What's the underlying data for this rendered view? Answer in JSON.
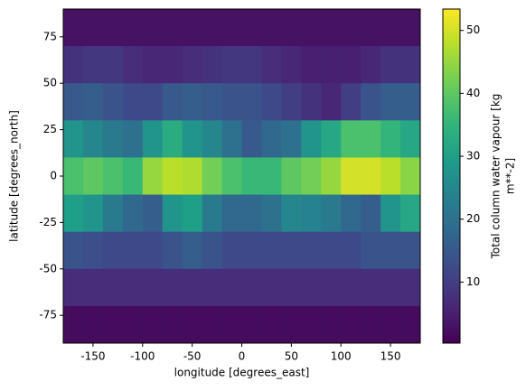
{
  "chart_data": {
    "type": "heatmap",
    "xlabel": "longitude [degrees_east]",
    "ylabel": "latitude [degrees_north]",
    "colorbar_label": [
      "Total column water vapour [kg",
      "m**-2]"
    ],
    "colormap": "viridis",
    "x_edges": [
      -180,
      -160,
      -140,
      -120,
      -100,
      -80,
      -60,
      -40,
      -20,
      0,
      20,
      40,
      60,
      80,
      100,
      120,
      140,
      160,
      180
    ],
    "y_edges": [
      90,
      70,
      50,
      30,
      10,
      -10,
      -30,
      -50,
      -70,
      -90
    ],
    "values": [
      [
        3,
        3,
        3,
        3,
        3,
        3,
        3,
        3,
        3,
        3,
        3,
        3,
        3,
        3,
        3,
        3,
        3,
        3
      ],
      [
        8,
        9,
        9,
        7,
        6,
        6,
        7,
        8,
        9,
        9,
        7,
        6,
        5,
        5,
        5,
        6,
        8,
        8
      ],
      [
        15,
        16,
        14,
        12,
        12,
        15,
        16,
        15,
        14,
        14,
        12,
        10,
        8,
        6,
        10,
        14,
        16,
        16
      ],
      [
        28,
        25,
        22,
        20,
        28,
        33,
        28,
        25,
        20,
        15,
        18,
        20,
        28,
        32,
        38,
        38,
        35,
        32
      ],
      [
        38,
        40,
        38,
        36,
        45,
        48,
        47,
        42,
        38,
        36,
        36,
        40,
        42,
        45,
        50,
        50,
        48,
        44
      ],
      [
        30,
        28,
        22,
        18,
        16,
        28,
        30,
        22,
        18,
        18,
        20,
        25,
        24,
        22,
        18,
        16,
        28,
        32
      ],
      [
        14,
        13,
        12,
        12,
        12,
        14,
        16,
        14,
        12,
        12,
        12,
        12,
        12,
        12,
        12,
        14,
        14,
        14
      ],
      [
        7,
        7,
        7,
        7,
        7,
        7,
        7,
        7,
        7,
        7,
        7,
        7,
        7,
        7,
        7,
        7,
        7,
        7
      ],
      [
        2,
        2,
        2,
        2,
        2,
        2,
        2,
        2,
        2,
        2,
        2,
        2,
        2,
        2,
        2,
        2,
        2,
        2
      ]
    ],
    "xlim": [
      -180,
      180
    ],
    "xticks": [
      -150,
      -100,
      -50,
      0,
      50,
      100,
      150
    ],
    "ylim": [
      -90,
      90
    ],
    "yticks": [
      -75,
      -50,
      -25,
      0,
      25,
      50,
      75
    ],
    "clim": [
      0.3,
      53.4
    ],
    "cticks": [
      10,
      20,
      30,
      40,
      50
    ]
  }
}
